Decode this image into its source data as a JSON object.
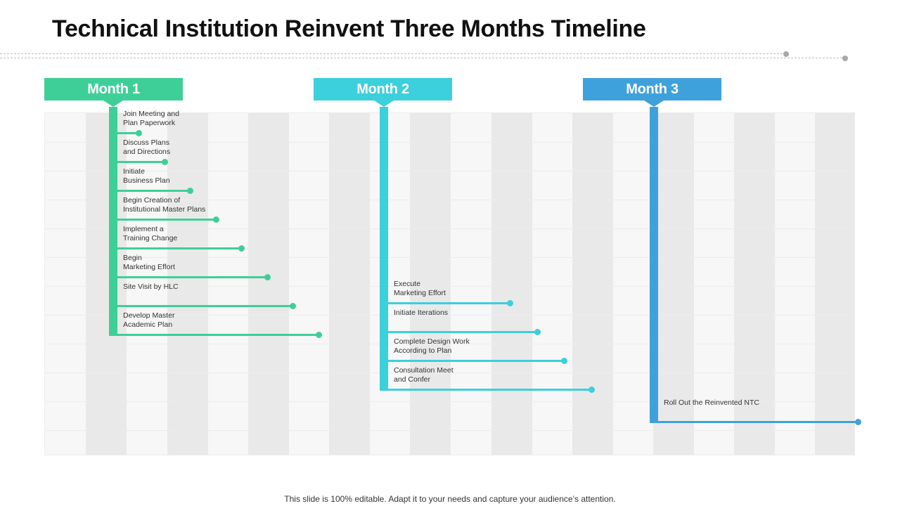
{
  "title": "Technical Institution Reinvent Three Months Timeline",
  "footer": "This slide is 100% editable. Adapt it to your needs and capture your audience’s attention.",
  "colors": {
    "month1": "#3ecf98",
    "month2": "#3ccfdc",
    "month3": "#3fa1db",
    "panel": "#f7f7f7",
    "stripe": "#e9e9e9",
    "divider_dot": "#a8a8a8"
  },
  "months": [
    {
      "label": "Month 1",
      "color": "#3ecf98",
      "tasks": [
        "Join Meeting and\nPlan Paperwork",
        "Discuss Plans\nand Directions",
        "Initiate\nBusiness Plan",
        "Begin Creation of\nInstitutional Master Plans",
        "Implement  a\nTraining Change",
        "Begin\nMarketing Effort",
        "Site Visit by HLC",
        "Develop Master\nAcademic Plan"
      ]
    },
    {
      "label": "Month 2",
      "color": "#3ccfdc",
      "tasks": [
        "Execute\nMarketing Effort",
        "Initiate  Iterations",
        "Complete  Design Work\nAccording to Plan",
        "Consultation Meet\nand Confer"
      ]
    },
    {
      "label": "Month 3",
      "color": "#3fa1db",
      "tasks": [
        "Roll Out the Reinvented NTC"
      ]
    }
  ]
}
